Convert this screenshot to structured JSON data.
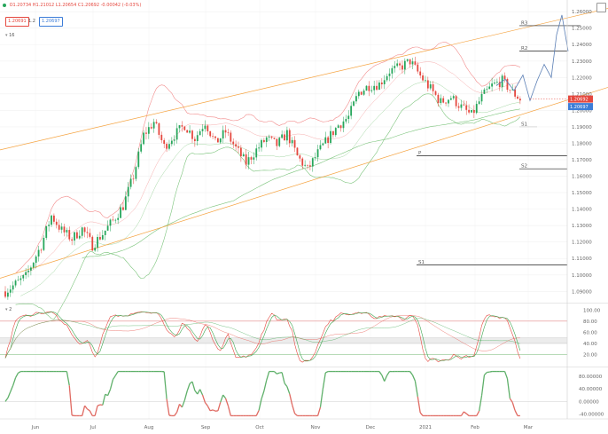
{
  "header": {
    "ohlc": "O1.20734 H1.21012 L1.20654 C1.20692 -0.00042 (-0.03%)",
    "indicator_value": "16"
  },
  "toolbar": {
    "sell_price": "1.20691",
    "spread": "1.2",
    "buy_price": "1.20697"
  },
  "colors": {
    "up": "#26a65b",
    "down": "#e5483f",
    "channel": "#f5a442",
    "bollinger": "#f28b8b",
    "ma": "#7cc47c",
    "projection": "#5b7fb5",
    "stoch_k": "#e5483f",
    "stoch_d": "#3fa651"
  },
  "chart_data": [
    {
      "type": "candlestick",
      "price_axis": {
        "ylim": [
          1.0837,
          1.2671
        ],
        "ticks": [
          "1.27000",
          "1.26000",
          "1.25000",
          "1.24000",
          "1.23000",
          "1.22000",
          "1.21000",
          "1.20000",
          "1.19000",
          "1.18000",
          "1.17000",
          "1.16000",
          "1.15000",
          "1.14000",
          "1.13000",
          "1.12000",
          "1.11000",
          "1.10000",
          "1.09000"
        ],
        "tick_values": [
          1.27,
          1.26,
          1.25,
          1.24,
          1.23,
          1.22,
          1.21,
          1.2,
          1.19,
          1.18,
          1.17,
          1.16,
          1.15,
          1.14,
          1.13,
          1.12,
          1.11,
          1.1,
          1.09
        ]
      },
      "time_axis": {
        "labels": [
          "Jun",
          "Jul",
          "Aug",
          "Sep",
          "Oct",
          "Nov",
          "Dec",
          "2021",
          "Feb",
          "Mar"
        ]
      },
      "last_price": {
        "value": "1.20692",
        "value2": "1.20697",
        "price": 1.2069
      },
      "pivot_levels": [
        {
          "label": "R3",
          "price": 1.2515
        },
        {
          "label": "R2",
          "price": 1.236
        },
        {
          "label": "S1",
          "price": 1.19
        },
        {
          "label": "P",
          "price": 1.1725
        },
        {
          "label": "S2",
          "price": 1.1645
        },
        {
          "label": "S1",
          "price": 1.106
        }
      ]
    },
    {
      "type": "line",
      "name": "stochastic",
      "header_value": "2",
      "ylim": [
        0,
        110
      ],
      "ticks": [
        "100.00",
        "80.00",
        "60.00",
        "40.00",
        "20.00"
      ],
      "tick_values": [
        100,
        80,
        60,
        40,
        20
      ],
      "levels": [
        80,
        50,
        40,
        20
      ]
    },
    {
      "type": "line",
      "name": "momentum",
      "ylim": [
        -55,
        105
      ],
      "ticks": [
        "80.00000",
        "40.00000",
        "0.00000",
        "-40.00000"
      ],
      "tick_values": [
        80,
        40,
        0,
        -40
      ]
    }
  ]
}
